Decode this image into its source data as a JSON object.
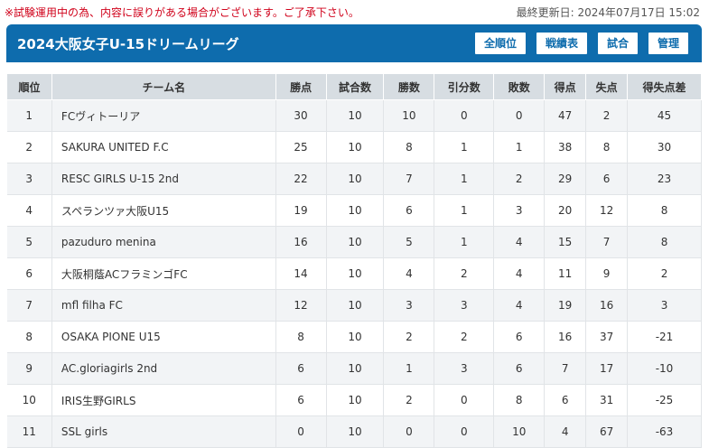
{
  "notice": "※試験運用中の為、内容に誤りがある場合がございます。ご了承下さい。",
  "updated": "最終更新日: 2024年07月17日 15:02",
  "title": "2024大阪女子U-15ドリームリーグ",
  "buttons": {
    "ranking": "全順位",
    "results": "戦績表",
    "match": "試合",
    "admin": "管理"
  },
  "headers": [
    "順位",
    "チーム名",
    "勝点",
    "試合数",
    "勝数",
    "引分数",
    "敗数",
    "得点",
    "失点",
    "得失点差"
  ],
  "rows": [
    [
      "1",
      "FCヴィトーリア",
      "30",
      "10",
      "10",
      "0",
      "0",
      "47",
      "2",
      "45"
    ],
    [
      "2",
      "SAKURA UNITED F.C",
      "25",
      "10",
      "8",
      "1",
      "1",
      "38",
      "8",
      "30"
    ],
    [
      "3",
      "RESC GIRLS U-15 2nd",
      "22",
      "10",
      "7",
      "1",
      "2",
      "29",
      "6",
      "23"
    ],
    [
      "4",
      "スペランツァ大阪U15",
      "19",
      "10",
      "6",
      "1",
      "3",
      "20",
      "12",
      "8"
    ],
    [
      "5",
      "pazuduro menina",
      "16",
      "10",
      "5",
      "1",
      "4",
      "15",
      "7",
      "8"
    ],
    [
      "6",
      "大阪桐蔭ACフラミンゴFC",
      "14",
      "10",
      "4",
      "2",
      "4",
      "11",
      "9",
      "2"
    ],
    [
      "7",
      "mfl filha FC",
      "12",
      "10",
      "3",
      "3",
      "4",
      "19",
      "16",
      "3"
    ],
    [
      "8",
      "OSAKA PIONE U15",
      "8",
      "10",
      "2",
      "2",
      "6",
      "16",
      "37",
      "-21"
    ],
    [
      "9",
      "AC.gloriagirls 2nd",
      "6",
      "10",
      "1",
      "3",
      "6",
      "7",
      "17",
      "-10"
    ],
    [
      "10",
      "IRIS生野GIRLS",
      "6",
      "10",
      "2",
      "0",
      "8",
      "6",
      "31",
      "-25"
    ],
    [
      "11",
      "SSL girls",
      "0",
      "10",
      "0",
      "0",
      "10",
      "4",
      "67",
      "-63"
    ]
  ]
}
